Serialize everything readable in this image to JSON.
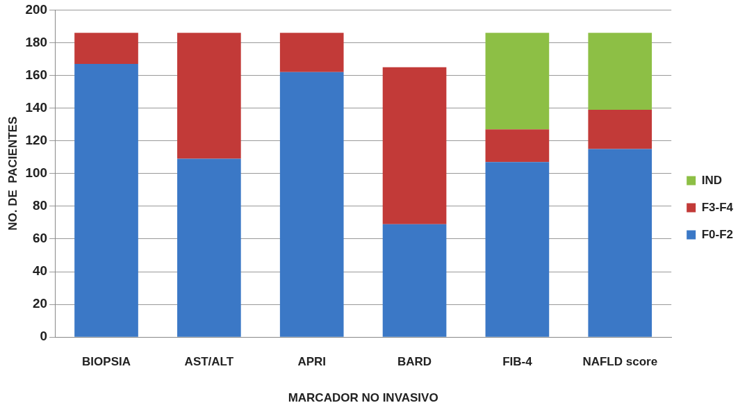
{
  "chart_data": {
    "type": "bar",
    "stacked": true,
    "xlabel": "MARCADOR NO INVASIVO",
    "ylabel": "NO. DE  PACIENTES",
    "categories": [
      "BIOPSIA",
      "AST/ALT",
      "APRI",
      "BARD",
      "FIB-4",
      "NAFLD score"
    ],
    "series": [
      {
        "name": "F0-F2",
        "color": "#3b78c6",
        "values": [
          167,
          109,
          162,
          69,
          107,
          115
        ]
      },
      {
        "name": "F3-F4",
        "color": "#c23a38",
        "values": [
          19,
          77,
          24,
          96,
          20,
          24
        ]
      },
      {
        "name": "IND",
        "color": "#8dbf45",
        "values": [
          null,
          null,
          null,
          null,
          59,
          47
        ]
      }
    ],
    "ylim": [
      0,
      200
    ],
    "yticks": [
      0,
      20,
      40,
      60,
      80,
      100,
      120,
      140,
      160,
      180,
      200
    ],
    "grid": "y",
    "legend": "right"
  }
}
